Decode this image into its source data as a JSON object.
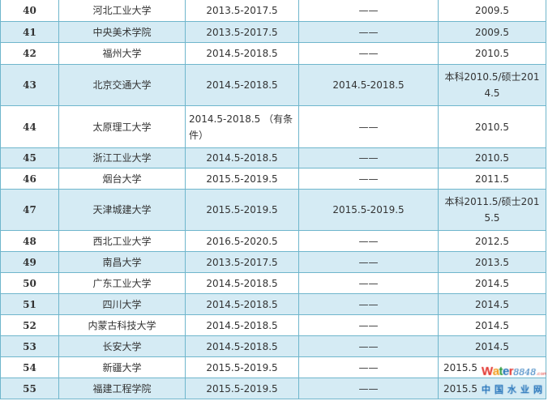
{
  "rows": [
    {
      "no": "40",
      "school": "河北工业大学",
      "period1": "2013.5-2017.5",
      "period2": "——",
      "date": "2009.5"
    },
    {
      "no": "41",
      "school": "中央美术学院",
      "period1": "2013.5-2017.5",
      "period2": "——",
      "date": "2009.5"
    },
    {
      "no": "42",
      "school": "福州大学",
      "period1": "2014.5-2018.5",
      "period2": "——",
      "date": "2010.5"
    },
    {
      "no": "43",
      "school": "北京交通大学",
      "period1": "2014.5-2018.5",
      "period2": "2014.5-2018.5",
      "date": "本科2010.5/硕士2014.5"
    },
    {
      "no": "44",
      "school": "太原理工大学",
      "period1": "2014.5-2018.5 （有条件）",
      "period2": "——",
      "date": "2010.5"
    },
    {
      "no": "45",
      "school": "浙江工业大学",
      "period1": "2014.5-2018.5",
      "period2": "——",
      "date": "2010.5"
    },
    {
      "no": "46",
      "school": "烟台大学",
      "period1": "2015.5-2019.5",
      "period2": "——",
      "date": "2011.5"
    },
    {
      "no": "47",
      "school": "天津城建大学",
      "period1": "2015.5-2019.5",
      "period2": "2015.5-2019.5",
      "date": "本科2011.5/硕士2015.5"
    },
    {
      "no": "48",
      "school": "西北工业大学",
      "period1": "2016.5-2020.5",
      "period2": "——",
      "date": "2012.5"
    },
    {
      "no": "49",
      "school": "南昌大学",
      "period1": "2013.5-2017.5",
      "period2": "——",
      "date": "2013.5"
    },
    {
      "no": "50",
      "school": "广东工业大学",
      "period1": "2014.5-2018.5",
      "period2": "——",
      "date": "2014.5"
    },
    {
      "no": "51",
      "school": "四川大学",
      "period1": "2014.5-2018.5",
      "period2": "——",
      "date": "2014.5"
    },
    {
      "no": "52",
      "school": "内蒙古科技大学",
      "period1": "2014.5-2018.5",
      "period2": "——",
      "date": "2014.5"
    },
    {
      "no": "53",
      "school": "长安大学",
      "period1": "2014.5-2018.5",
      "period2": "——",
      "date": "2014.5"
    },
    {
      "no": "54",
      "school": "新疆大学",
      "period1": "2015.5-2019.5",
      "period2": "——",
      "date": "2015.5"
    },
    {
      "no": "55",
      "school": "福建工程学院",
      "period1": "2015.5-2019.5",
      "period2": "——",
      "date": "2015.5"
    }
  ],
  "watermark": {
    "brand": "Water8848.com",
    "cn": "中国水业网"
  },
  "colors": {
    "stripe": "#d5ebf4",
    "border": "#6fb6cc"
  }
}
